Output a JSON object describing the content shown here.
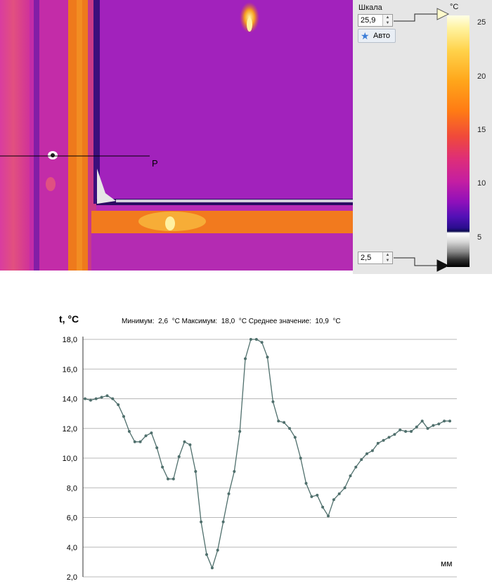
{
  "scale_panel": {
    "scale_label": "Шкала",
    "max_value": "25,9",
    "auto_label": "Авто",
    "min_value": "2,5",
    "unit": "°C",
    "ticks": [
      "25",
      "20",
      "15",
      "10",
      "5"
    ],
    "icon": "star-icon"
  },
  "thermogram": {
    "marker_label": "P"
  },
  "chart_data": {
    "type": "line",
    "ylabel": "t, °C",
    "xlabel": "мм",
    "stats": "Минимум:  2,6  °C Максимум:  18,0  °C Среднее значение:  10,9  °C",
    "ylim": [
      2,
      18
    ],
    "yticks": [
      "2,0",
      "4,0",
      "6,0",
      "8,0",
      "10,0",
      "12,0",
      "14,0",
      "16,0",
      "18,0"
    ],
    "grid": true,
    "line_color": "#4f6f6c",
    "values": [
      14.0,
      13.9,
      14.0,
      14.1,
      14.2,
      14.0,
      13.6,
      12.8,
      11.8,
      11.1,
      11.1,
      11.5,
      11.7,
      10.7,
      9.4,
      8.6,
      8.6,
      10.1,
      11.1,
      10.9,
      9.1,
      5.7,
      3.5,
      2.6,
      3.8,
      5.7,
      7.6,
      9.1,
      11.8,
      16.7,
      18.0,
      18.0,
      17.8,
      16.8,
      13.8,
      12.5,
      12.4,
      12.0,
      11.4,
      10.0,
      8.3,
      7.4,
      7.5,
      6.7,
      6.1,
      7.2,
      7.6,
      8.0,
      8.8,
      9.4,
      9.9,
      10.3,
      10.5,
      11.0,
      11.2,
      11.4,
      11.6,
      11.9,
      11.8,
      11.8,
      12.1,
      12.5,
      12.0,
      12.2,
      12.3,
      12.5,
      12.5
    ]
  }
}
